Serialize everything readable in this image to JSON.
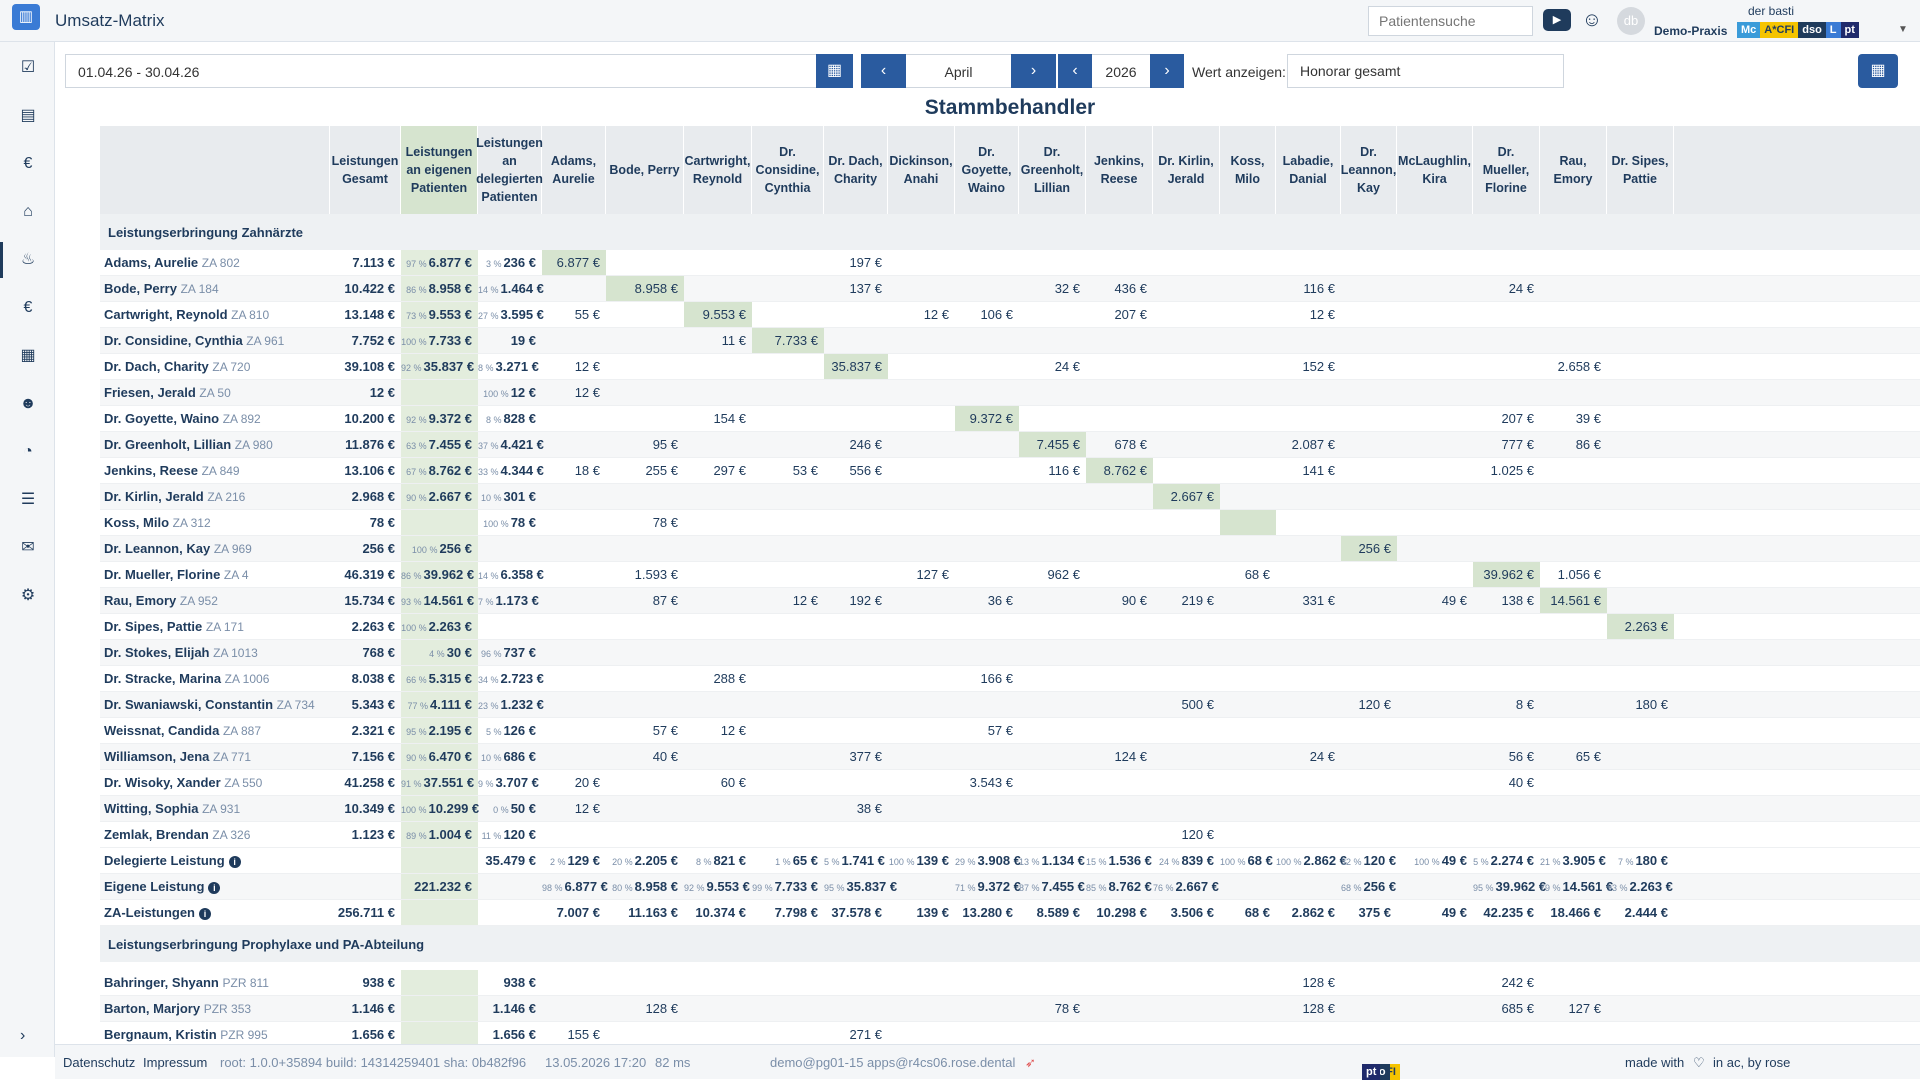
{
  "app": {
    "title": "Umsatz-Matrix",
    "search_placeholder": "Patientensuche",
    "avatar": "db",
    "user": "der basti",
    "praxis": "Demo-Praxis"
  },
  "tags": [
    {
      "label": "Mc",
      "color": "#3a9bd9"
    },
    {
      "label": "A*CFI",
      "color": "#f5c400"
    },
    {
      "label": "dso",
      "color": "#1f3b5c"
    },
    {
      "label": "L",
      "color": "#3a7bd5"
    },
    {
      "label": "pt",
      "color": "#1f2a6b"
    }
  ],
  "controls": {
    "daterange": "01.04.26 - 30.04.26",
    "month": "April",
    "year": "2026",
    "wert_label": "Wert anzeigen:",
    "wert_value": "Honorar gesamt"
  },
  "matrix": {
    "title": "Stammbehandler",
    "headers": [
      "",
      "Leistungen Gesamt",
      "Leistungen an eigenen Patienten",
      "Leistungen an delegierten Patienten",
      "Adams, Aurelie",
      "Bode, Perry",
      "Cartwright, Reynold",
      "Dr. Considine, Cynthia",
      "Dr. Dach, Charity",
      "Dickinson, Anahi",
      "Dr. Goyette, Waino",
      "Dr. Greenholt, Lillian",
      "Jenkins, Reese",
      "Dr. Kirlin, Jerald",
      "Koss, Milo",
      "Labadie, Danial",
      "Dr. Leannon, Kay",
      "McLaughlin, Kira",
      "Dr. Mueller, Florine",
      "Rau, Emory",
      "Dr. Sipes, Pattie"
    ],
    "section1": "Leistungserbringung Zahnärzte",
    "section2": "Leistungserbringung Prophylaxe und PA-Abteilung",
    "rows1": [
      {
        "name": "Adams, Aurelie",
        "tag": "ZA 802",
        "total": "7.113 €",
        "own_pct": "97 %",
        "own": "6.877 €",
        "del_pct": "3 %",
        "del": "236 €",
        "cells": {
          "4": "6.877 €",
          "8": "197 €"
        }
      },
      {
        "name": "Bode, Perry",
        "tag": "ZA 184",
        "total": "10.422 €",
        "own_pct": "86 %",
        "own": "8.958 €",
        "del_pct": "14 %",
        "del": "1.464 €",
        "cells": {
          "5": "8.958 €",
          "8": "137 €",
          "11": "32 €",
          "12": "436 €",
          "15": "116 €",
          "18": "24 €"
        }
      },
      {
        "name": "Cartwright, Reynold",
        "tag": "ZA 810",
        "total": "13.148 €",
        "own_pct": "73 %",
        "own": "9.553 €",
        "del_pct": "27 %",
        "del": "3.595 €",
        "cells": {
          "4": "55 €",
          "6": "9.553 €",
          "9": "12 €",
          "10": "106 €",
          "12": "207 €",
          "15": "12 €"
        }
      },
      {
        "name": "Dr. Considine, Cynthia",
        "tag": "ZA 961",
        "total": "7.752 €",
        "own_pct": "100 %",
        "own": "7.733 €",
        "del_pct": "",
        "del": "19 €",
        "cells": {
          "6": "11 €",
          "7": "7.733 €"
        }
      },
      {
        "name": "Dr. Dach, Charity",
        "tag": "ZA 720",
        "total": "39.108 €",
        "own_pct": "92 %",
        "own": "35.837 €",
        "del_pct": "8 %",
        "del": "3.271 €",
        "cells": {
          "4": "12 €",
          "8": "35.837 €",
          "11": "24 €",
          "15": "152 €",
          "19": "2.658 €"
        }
      },
      {
        "name": "Friesen, Jerald",
        "tag": "ZA 50",
        "total": "12 €",
        "own_pct": "",
        "own": "",
        "del_pct": "100 %",
        "del": "12 €",
        "cells": {
          "4": "12 €"
        }
      },
      {
        "name": "Dr. Goyette, Waino",
        "tag": "ZA 892",
        "total": "10.200 €",
        "own_pct": "92 %",
        "own": "9.372 €",
        "del_pct": "8 %",
        "del": "828 €",
        "cells": {
          "6": "154 €",
          "10": "9.372 €",
          "18": "207 €",
          "19": "39 €"
        }
      },
      {
        "name": "Dr. Greenholt, Lillian",
        "tag": "ZA 980",
        "total": "11.876 €",
        "own_pct": "63 %",
        "own": "7.455 €",
        "del_pct": "37 %",
        "del": "4.421 €",
        "cells": {
          "5": "95 €",
          "8": "246 €",
          "11": "7.455 €",
          "12": "678 €",
          "15": "2.087 €",
          "18": "777 €",
          "19": "86 €"
        }
      },
      {
        "name": "Jenkins, Reese",
        "tag": "ZA 849",
        "total": "13.106 €",
        "own_pct": "67 %",
        "own": "8.762 €",
        "del_pct": "33 %",
        "del": "4.344 €",
        "cells": {
          "4": "18 €",
          "5": "255 €",
          "6": "297 €",
          "7": "53 €",
          "8": "556 €",
          "11": "116 €",
          "12": "8.762 €",
          "15": "141 €",
          "18": "1.025 €"
        }
      },
      {
        "name": "Dr. Kirlin, Jerald",
        "tag": "ZA 216",
        "total": "2.968 €",
        "own_pct": "90 %",
        "own": "2.667 €",
        "del_pct": "10 %",
        "del": "301 €",
        "cells": {
          "13": "2.667 €"
        }
      },
      {
        "name": "Koss, Milo",
        "tag": "ZA 312",
        "total": "78 €",
        "own_pct": "",
        "own": "",
        "del_pct": "100 %",
        "del": "78 €",
        "cells": {
          "5": "78 €",
          "14": ""
        }
      },
      {
        "name": "Dr. Leannon, Kay",
        "tag": "ZA 969",
        "total": "256 €",
        "own_pct": "100 %",
        "own": "256 €",
        "del_pct": "",
        "del": "",
        "cells": {
          "16": "256 €"
        }
      },
      {
        "name": "Dr. Mueller, Florine",
        "tag": "ZA 4",
        "total": "46.319 €",
        "own_pct": "86 %",
        "own": "39.962 €",
        "del_pct": "14 %",
        "del": "6.358 €",
        "cells": {
          "5": "1.593 €",
          "9": "127 €",
          "11": "962 €",
          "14": "68 €",
          "18": "39.962 €",
          "19": "1.056 €"
        }
      },
      {
        "name": "Rau, Emory",
        "tag": "ZA 952",
        "total": "15.734 €",
        "own_pct": "93 %",
        "own": "14.561 €",
        "del_pct": "7 %",
        "del": "1.173 €",
        "cells": {
          "5": "87 €",
          "7": "12 €",
          "8": "192 €",
          "10": "36 €",
          "12": "90 €",
          "13": "219 €",
          "15": "331 €",
          "17": "49 €",
          "18": "138 €",
          "19": "14.561 €"
        }
      },
      {
        "name": "Dr. Sipes, Pattie",
        "tag": "ZA 171",
        "total": "2.263 €",
        "own_pct": "100 %",
        "own": "2.263 €",
        "del_pct": "",
        "del": "",
        "cells": {
          "20": "2.263 €"
        }
      },
      {
        "name": "Dr. Stokes, Elijah",
        "tag": "ZA 1013",
        "total": "768 €",
        "own_pct": "4 %",
        "own": "30 €",
        "del_pct": "96 %",
        "del": "737 €",
        "cells": {}
      },
      {
        "name": "Dr. Stracke, Marina",
        "tag": "ZA 1006",
        "total": "8.038 €",
        "own_pct": "66 %",
        "own": "5.315 €",
        "del_pct": "34 %",
        "del": "2.723 €",
        "cells": {
          "6": "288 €",
          "10": "166 €"
        }
      },
      {
        "name": "Dr. Swaniawski, Constantin",
        "tag": "ZA 734",
        "total": "5.343 €",
        "own_pct": "77 %",
        "own": "4.111 €",
        "del_pct": "23 %",
        "del": "1.232 €",
        "cells": {
          "13": "500 €",
          "16": "120 €",
          "18": "8 €",
          "20": "180 €"
        }
      },
      {
        "name": "Weissnat, Candida",
        "tag": "ZA 887",
        "total": "2.321 €",
        "own_pct": "95 %",
        "own": "2.195 €",
        "del_pct": "5 %",
        "del": "126 €",
        "cells": {
          "5": "57 €",
          "6": "12 €",
          "10": "57 €"
        }
      },
      {
        "name": "Williamson, Jena",
        "tag": "ZA 771",
        "total": "7.156 €",
        "own_pct": "90 %",
        "own": "6.470 €",
        "del_pct": "10 %",
        "del": "686 €",
        "cells": {
          "5": "40 €",
          "8": "377 €",
          "12": "124 €",
          "15": "24 €",
          "18": "56 €",
          "19": "65 €"
        }
      },
      {
        "name": "Dr. Wisoky, Xander",
        "tag": "ZA 550",
        "total": "41.258 €",
        "own_pct": "91 %",
        "own": "37.551 €",
        "del_pct": "9 %",
        "del": "3.707 €",
        "cells": {
          "4": "20 €",
          "6": "60 €",
          "10": "3.543 €",
          "18": "40 €"
        }
      },
      {
        "name": "Witting, Sophia",
        "tag": "ZA 931",
        "total": "10.349 €",
        "own_pct": "100 %",
        "own": "10.299 €",
        "del_pct": "0 %",
        "del": "50 €",
        "cells": {
          "4": "12 €",
          "8": "38 €"
        }
      },
      {
        "name": "Zemlak, Brendan",
        "tag": "ZA 326",
        "total": "1.123 €",
        "own_pct": "89 %",
        "own": "1.004 €",
        "del_pct": "11 %",
        "del": "120 €",
        "cells": {
          "13": "120 €"
        }
      }
    ],
    "summary": [
      {
        "name": "Delegierte Leistung",
        "c1": "",
        "c2": "",
        "c3": "35.479 €",
        "cells": [
          [
            "2 %",
            "129 €"
          ],
          [
            "20 %",
            "2.205 €"
          ],
          [
            "8 %",
            "821 €"
          ],
          [
            "1 %",
            "65 €"
          ],
          [
            "5 %",
            "1.741 €"
          ],
          [
            "100 %",
            "139 €"
          ],
          [
            "29 %",
            "3.908 €"
          ],
          [
            "13 %",
            "1.134 €"
          ],
          [
            "15 %",
            "1.536 €"
          ],
          [
            "24 %",
            "839 €"
          ],
          [
            "100 %",
            "68 €"
          ],
          [
            "100 %",
            "2.862 €"
          ],
          [
            "32 %",
            "120 €"
          ],
          [
            "100 %",
            "49 €"
          ],
          [
            "5 %",
            "2.274 €"
          ],
          [
            "21 %",
            "3.905 €"
          ],
          [
            "7 %",
            "180 €"
          ]
        ]
      },
      {
        "name": "Eigene Leistung",
        "c1": "",
        "c2": "221.232 €",
        "c3": "",
        "cells": [
          [
            "98 %",
            "6.877 €"
          ],
          [
            "80 %",
            "8.958 €"
          ],
          [
            "92 %",
            "9.553 €"
          ],
          [
            "99 %",
            "7.733 €"
          ],
          [
            "95 %",
            "35.837 €"
          ],
          [
            "",
            ""
          ],
          [
            "71 %",
            "9.372 €"
          ],
          [
            "87 %",
            "7.455 €"
          ],
          [
            "85 %",
            "8.762 €"
          ],
          [
            "76 %",
            "2.667 €"
          ],
          [
            "",
            ""
          ],
          [
            "",
            ""
          ],
          [
            "68 %",
            "256 €"
          ],
          [
            "",
            ""
          ],
          [
            "95 %",
            "39.962 €"
          ],
          [
            "79 %",
            "14.561 €"
          ],
          [
            "93 %",
            "2.263 €"
          ]
        ]
      },
      {
        "name": "ZA-Leistungen",
        "c1": "256.711 €",
        "c2": "",
        "c3": "",
        "cells": [
          [
            "",
            "7.007 €"
          ],
          [
            "",
            "11.163 €"
          ],
          [
            "",
            "10.374 €"
          ],
          [
            "",
            "7.798 €"
          ],
          [
            "",
            "37.578 €"
          ],
          [
            "",
            "139 €"
          ],
          [
            "",
            "13.280 €"
          ],
          [
            "",
            "8.589 €"
          ],
          [
            "",
            "10.298 €"
          ],
          [
            "",
            "3.506 €"
          ],
          [
            "",
            "68 €"
          ],
          [
            "",
            "2.862 €"
          ],
          [
            "",
            "375 €"
          ],
          [
            "",
            "49 €"
          ],
          [
            "",
            "42.235 €"
          ],
          [
            "",
            "18.466 €"
          ],
          [
            "",
            "2.444 €"
          ]
        ]
      }
    ],
    "rows2": [
      {
        "name": "Bahringer, Shyann",
        "tag": "PZR 811",
        "total": "938 €",
        "del": "938 €",
        "cells": {
          "15": "128 €",
          "18": "242 €"
        }
      },
      {
        "name": "Barton, Marjory",
        "tag": "PZR 353",
        "total": "1.146 €",
        "del": "1.146 €",
        "cells": {
          "5": "128 €",
          "11": "78 €",
          "15": "128 €",
          "18": "685 €",
          "19": "127 €"
        }
      },
      {
        "name": "Bergnaum, Kristin",
        "tag": "PZR 995",
        "total": "1.656 €",
        "del": "1.656 €",
        "cells": {
          "4": "155 €",
          "8": "271 €"
        }
      }
    ]
  },
  "footer": {
    "datenschutz": "Datenschutz",
    "impressum": "Impressum",
    "build": "root: 1.0.0+35894 build: 14314259401 sha: 0b482f96",
    "datetime": "13.05.2026 17:20",
    "ms": "82 ms",
    "host": "demo@pg01-15 apps@r4cs06.rose.dental",
    "made": "made with",
    "in": "in ac, by rose"
  }
}
